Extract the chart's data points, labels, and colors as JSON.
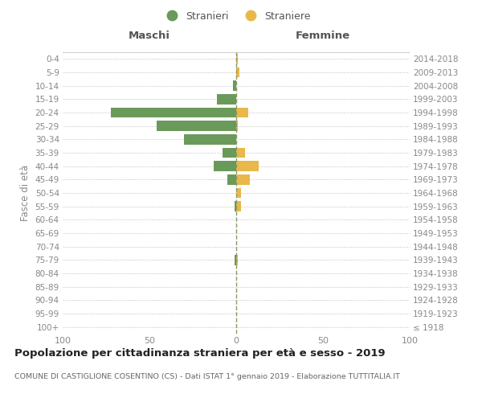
{
  "age_groups": [
    "100+",
    "95-99",
    "90-94",
    "85-89",
    "80-84",
    "75-79",
    "70-74",
    "65-69",
    "60-64",
    "55-59",
    "50-54",
    "45-49",
    "40-44",
    "35-39",
    "30-34",
    "25-29",
    "20-24",
    "15-19",
    "10-14",
    "5-9",
    "0-4"
  ],
  "birth_years": [
    "≤ 1918",
    "1919-1923",
    "1924-1928",
    "1929-1933",
    "1934-1938",
    "1939-1943",
    "1944-1948",
    "1949-1953",
    "1954-1958",
    "1959-1963",
    "1964-1968",
    "1969-1973",
    "1974-1978",
    "1979-1983",
    "1984-1988",
    "1989-1993",
    "1994-1998",
    "1999-2003",
    "2004-2008",
    "2009-2013",
    "2014-2018"
  ],
  "males": [
    0,
    0,
    0,
    0,
    0,
    1,
    0,
    0,
    0,
    1,
    0,
    5,
    13,
    8,
    30,
    46,
    72,
    11,
    2,
    0,
    0
  ],
  "females": [
    0,
    0,
    0,
    0,
    0,
    1,
    0,
    0,
    0,
    3,
    3,
    8,
    13,
    5,
    0,
    1,
    7,
    0,
    0,
    2,
    1
  ],
  "male_color": "#6a9a59",
  "female_color": "#e8b84b",
  "background_color": "#ffffff",
  "grid_color": "#cccccc",
  "title": "Popolazione per cittadinanza straniera per età e sesso - 2019",
  "subtitle": "COMUNE DI CASTIGLIONE COSENTINO (CS) - Dati ISTAT 1° gennaio 2019 - Elaborazione TUTTITALIA.IT",
  "xlabel_left": "Maschi",
  "xlabel_right": "Femmine",
  "ylabel_left": "Fasce di età",
  "legend_male": "Stranieri",
  "legend_female": "Straniere",
  "xlim": 100,
  "center_line_color": "#8a9a6a",
  "center_line_style": "--"
}
